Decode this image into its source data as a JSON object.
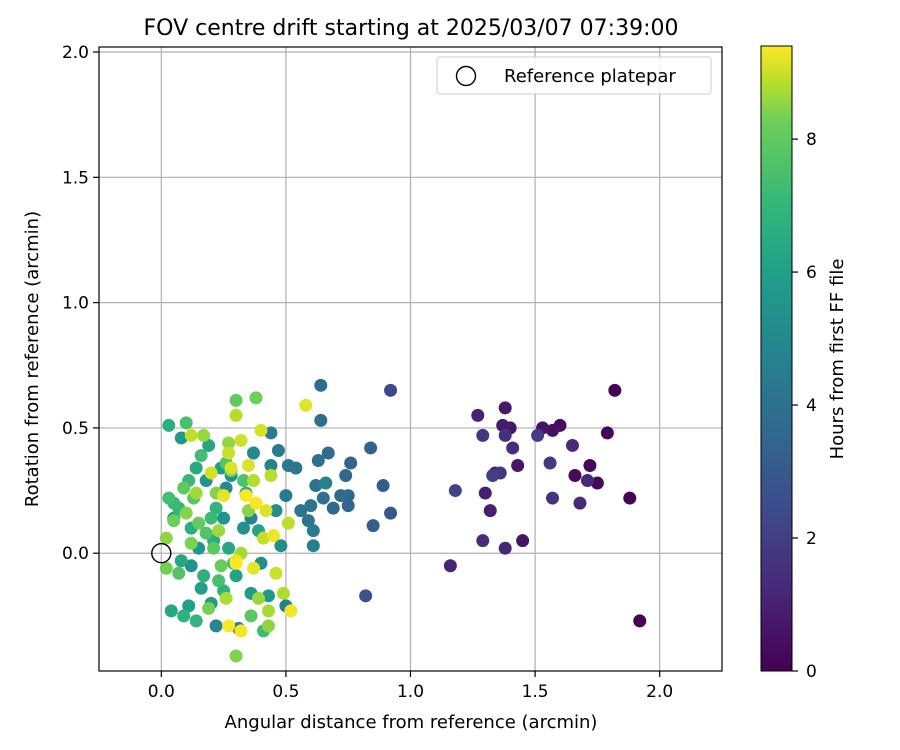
{
  "chart_data": {
    "type": "scatter",
    "title": "FOV centre drift starting at 2025/03/07 07:39:00",
    "xlabel": "Angular distance from reference (arcmin)",
    "ylabel": "Rotation from reference (arcmin)",
    "xlim": [
      -0.25,
      2.25
    ],
    "ylim": [
      -0.47,
      2.02
    ],
    "xticks": [
      "0.0",
      "0.5",
      "1.0",
      "1.5",
      "2.0"
    ],
    "yticks": [
      "0.0",
      "0.5",
      "1.0",
      "1.5",
      "2.0"
    ],
    "grid": true,
    "colormap": "viridis",
    "colorbar": {
      "label": "Hours from first FF file",
      "range": [
        0,
        9.4
      ],
      "ticks": [
        "0",
        "2",
        "4",
        "6",
        "8"
      ]
    },
    "legend": {
      "position": "top-right",
      "entries": [
        {
          "label": "Reference platepar",
          "marker": "open-circle"
        }
      ]
    },
    "reference_point": {
      "x": 0.0,
      "y": 0.0
    },
    "series": [
      {
        "note_hours_are_color": true,
        "points": [
          [
            1.82,
            0.65,
            0.0
          ],
          [
            1.92,
            -0.27,
            0.05
          ],
          [
            1.88,
            0.22,
            0.1
          ],
          [
            1.79,
            0.48,
            0.15
          ],
          [
            1.75,
            0.28,
            0.2
          ],
          [
            1.72,
            0.35,
            0.25
          ],
          [
            1.66,
            0.31,
            0.3
          ],
          [
            1.6,
            0.51,
            0.35
          ],
          [
            1.57,
            0.49,
            0.4
          ],
          [
            1.53,
            0.5,
            0.45
          ],
          [
            1.45,
            0.05,
            0.5
          ],
          [
            1.43,
            0.35,
            0.55
          ],
          [
            1.4,
            0.5,
            0.6
          ],
          [
            1.38,
            0.58,
            0.65
          ],
          [
            1.37,
            0.51,
            0.7
          ],
          [
            1.34,
            0.32,
            0.75
          ],
          [
            1.32,
            0.17,
            0.8
          ],
          [
            1.3,
            0.24,
            0.85
          ],
          [
            1.27,
            0.55,
            0.9
          ],
          [
            1.16,
            -0.05,
            0.95
          ],
          [
            1.38,
            0.02,
            1.0
          ],
          [
            1.71,
            0.29,
            1.05
          ],
          [
            1.68,
            0.2,
            1.1
          ],
          [
            1.65,
            0.43,
            1.15
          ],
          [
            1.29,
            0.05,
            1.2
          ],
          [
            1.41,
            0.42,
            1.3
          ],
          [
            1.38,
            0.47,
            1.35
          ],
          [
            1.57,
            0.22,
            1.4
          ],
          [
            1.29,
            0.47,
            1.45
          ],
          [
            1.36,
            0.32,
            1.5
          ],
          [
            1.56,
            0.36,
            1.6
          ],
          [
            1.51,
            0.47,
            1.7
          ],
          [
            1.33,
            0.31,
            1.8
          ],
          [
            1.18,
            0.25,
            1.9
          ],
          [
            0.92,
            0.65,
            2.1
          ],
          [
            0.82,
            -0.17,
            2.4
          ],
          [
            0.92,
            0.16,
            2.6
          ],
          [
            0.89,
            0.27,
            2.7
          ],
          [
            0.85,
            0.11,
            2.8
          ],
          [
            0.84,
            0.42,
            2.9
          ],
          [
            0.76,
            0.36,
            3.0
          ],
          [
            0.75,
            0.19,
            3.05
          ],
          [
            0.75,
            0.23,
            3.1
          ],
          [
            0.74,
            0.31,
            3.15
          ],
          [
            0.72,
            0.23,
            3.2
          ],
          [
            0.69,
            0.18,
            3.25
          ],
          [
            0.67,
            0.4,
            3.3
          ],
          [
            0.64,
            0.67,
            3.35
          ],
          [
            0.64,
            0.53,
            3.4
          ],
          [
            0.65,
            0.22,
            3.45
          ],
          [
            0.63,
            0.37,
            3.5
          ],
          [
            0.62,
            0.27,
            3.55
          ],
          [
            0.6,
            0.19,
            3.6
          ],
          [
            0.59,
            0.13,
            3.65
          ],
          [
            0.56,
            0.17,
            3.7
          ],
          [
            0.54,
            0.34,
            3.75
          ],
          [
            0.51,
            0.35,
            3.8
          ],
          [
            0.5,
            0.23,
            3.85
          ],
          [
            0.47,
            0.41,
            3.9
          ],
          [
            0.44,
            0.48,
            3.95
          ],
          [
            0.61,
            0.09,
            4.0
          ],
          [
            0.61,
            0.03,
            4.05
          ],
          [
            0.66,
            0.28,
            4.1
          ],
          [
            0.5,
            -0.21,
            4.15
          ],
          [
            0.44,
            0.35,
            4.2
          ],
          [
            0.36,
            0.14,
            4.3
          ],
          [
            0.22,
            -0.29,
            4.35
          ],
          [
            0.31,
            -0.3,
            4.4
          ],
          [
            0.37,
            0.4,
            4.45
          ],
          [
            0.26,
            0.26,
            4.5
          ],
          [
            0.48,
            0.03,
            4.55
          ],
          [
            0.46,
            0.17,
            4.6
          ],
          [
            0.4,
            -0.04,
            4.65
          ],
          [
            0.33,
            0.1,
            4.7
          ],
          [
            0.28,
            0.31,
            4.75
          ],
          [
            0.12,
            -0.05,
            4.8
          ],
          [
            0.18,
            0.29,
            4.85
          ],
          [
            0.25,
            0.14,
            4.9
          ],
          [
            0.43,
            -0.17,
            4.95
          ],
          [
            0.08,
            0.46,
            5.0
          ],
          [
            0.15,
            0.02,
            5.05
          ],
          [
            0.2,
            -0.2,
            5.1
          ],
          [
            0.36,
            -0.16,
            5.15
          ],
          [
            0.24,
            0.34,
            5.2
          ],
          [
            0.11,
            -0.21,
            5.25
          ],
          [
            0.05,
            0.14,
            5.3
          ],
          [
            0.16,
            -0.14,
            5.35
          ],
          [
            0.3,
            -0.09,
            5.4
          ],
          [
            0.39,
            0.09,
            5.45
          ],
          [
            0.19,
            0.43,
            5.5
          ],
          [
            0.08,
            -0.03,
            5.55
          ],
          [
            0.27,
            0.02,
            5.6
          ],
          [
            0.04,
            -0.23,
            5.65
          ],
          [
            0.14,
            0.34,
            5.7
          ],
          [
            0.21,
            0.05,
            5.75
          ],
          [
            0.34,
            0.24,
            5.8
          ],
          [
            0.12,
            0.1,
            5.85
          ],
          [
            0.03,
            0.51,
            5.9
          ],
          [
            0.17,
            -0.09,
            5.95
          ],
          [
            0.25,
            -0.15,
            6.0
          ],
          [
            0.09,
            -0.25,
            6.05
          ],
          [
            0.22,
            0.18,
            6.1
          ],
          [
            0.14,
            -0.27,
            6.15
          ],
          [
            0.07,
            0.18,
            6.2
          ],
          [
            0.29,
            -0.04,
            6.25
          ],
          [
            0.11,
            0.29,
            6.3
          ],
          [
            0.05,
            0.2,
            6.35
          ],
          [
            0.2,
            0.14,
            6.4
          ],
          [
            0.41,
            -0.31,
            6.45
          ],
          [
            0.16,
            0.39,
            6.5
          ],
          [
            0.03,
            0.22,
            6.55
          ],
          [
            0.23,
            -0.11,
            6.6
          ],
          [
            0.1,
            0.52,
            6.65
          ],
          [
            0.33,
            0.29,
            6.7
          ],
          [
            0.18,
            0.08,
            6.75
          ],
          [
            0.07,
            -0.08,
            6.8
          ],
          [
            0.26,
            0.36,
            6.85
          ],
          [
            0.13,
            0.22,
            6.9
          ],
          [
            0.36,
            -0.25,
            6.95
          ],
          [
            0.21,
            0.02,
            7.0
          ],
          [
            0.09,
            0.26,
            7.05
          ],
          [
            0.3,
            0.61,
            7.1
          ],
          [
            0.15,
            0.12,
            7.15
          ],
          [
            0.24,
            -0.05,
            7.2
          ],
          [
            0.05,
            0.13,
            7.25
          ],
          [
            0.38,
            0.62,
            7.3
          ],
          [
            0.02,
            -0.06,
            7.35
          ],
          [
            0.19,
            -0.22,
            7.4
          ],
          [
            0.28,
            0.33,
            7.45
          ],
          [
            0.12,
            0.04,
            7.5
          ],
          [
            0.3,
            -0.41,
            7.55
          ],
          [
            0.22,
            0.24,
            7.6
          ],
          [
            0.1,
            0.16,
            7.65
          ],
          [
            0.35,
            0.17,
            7.7
          ],
          [
            0.02,
            0.06,
            7.75
          ],
          [
            0.43,
            -0.29,
            7.8
          ],
          [
            0.27,
            0.44,
            7.85
          ],
          [
            0.17,
            0.47,
            7.9
          ],
          [
            0.39,
            -0.18,
            7.95
          ],
          [
            0.23,
            0.09,
            8.0
          ],
          [
            0.14,
            0.24,
            8.05
          ],
          [
            0.32,
            0.0,
            8.1
          ],
          [
            0.43,
            -0.23,
            8.15
          ],
          [
            0.26,
            -0.18,
            8.2
          ],
          [
            0.49,
            -0.16,
            8.25
          ],
          [
            0.37,
            0.29,
            8.3
          ],
          [
            0.3,
            0.55,
            8.35
          ],
          [
            0.44,
            0.31,
            8.4
          ],
          [
            0.51,
            0.12,
            8.45
          ],
          [
            0.12,
            0.47,
            8.5
          ],
          [
            0.41,
            0.06,
            8.55
          ],
          [
            0.27,
            0.4,
            8.6
          ],
          [
            0.46,
            -0.08,
            8.65
          ],
          [
            0.32,
            0.45,
            8.7
          ],
          [
            0.2,
            0.32,
            8.75
          ],
          [
            0.4,
            0.49,
            8.8
          ],
          [
            0.28,
            0.34,
            8.85
          ],
          [
            0.35,
            0.35,
            8.9
          ],
          [
            0.42,
            0.17,
            8.95
          ],
          [
            0.58,
            0.59,
            9.0
          ],
          [
            0.25,
            0.23,
            9.05
          ],
          [
            0.37,
            -0.06,
            9.1
          ],
          [
            0.3,
            -0.03,
            9.15
          ],
          [
            0.45,
            0.07,
            9.2
          ],
          [
            0.52,
            -0.23,
            9.25
          ],
          [
            0.32,
            -0.31,
            9.3
          ],
          [
            0.38,
            0.2,
            9.32
          ],
          [
            0.27,
            -0.29,
            9.35
          ],
          [
            0.34,
            0.23,
            9.38
          ],
          [
            0.3,
            -0.04,
            9.4
          ]
        ]
      }
    ]
  }
}
